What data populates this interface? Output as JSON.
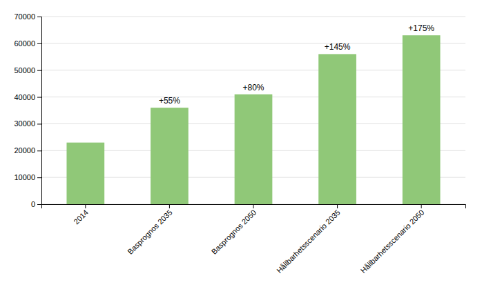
{
  "chart_data": {
    "type": "bar",
    "categories": [
      "2014",
      "Basprognos 2035",
      "Basprognos 2050",
      "Hållbarhetsscenario 2035",
      "Hållbarhetsscenario 2050"
    ],
    "values": [
      23000,
      36000,
      41000,
      56000,
      63000
    ],
    "color": "#90C878",
    "annotations": [
      {
        "category": "Basprognos 2035",
        "text": "+55%"
      },
      {
        "category": "Basprognos 2050",
        "text": "+80%"
      },
      {
        "category": "Hållbarhetsscenario 2035",
        "text": "+145%"
      },
      {
        "category": "Hållbarhetsscenario 2050",
        "text": "+175%"
      }
    ],
    "ylim": [
      0,
      70000
    ],
    "yticks": [
      0,
      10000,
      20000,
      30000,
      40000,
      50000,
      60000,
      70000
    ],
    "grid": true
  }
}
